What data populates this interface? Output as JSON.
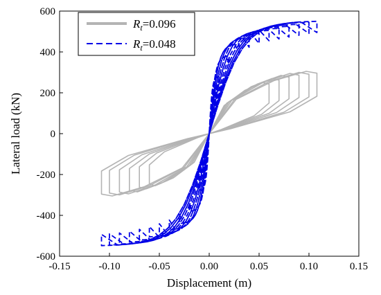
{
  "chart_data": {
    "type": "line",
    "title": "",
    "xlabel": "Displacement (m)",
    "ylabel": "Lateral load (kN)",
    "xlim": [
      -0.15,
      0.15
    ],
    "ylim": [
      -600,
      600
    ],
    "xticks": [
      -0.15,
      -0.1,
      -0.05,
      0.0,
      0.05,
      0.1,
      0.15
    ],
    "xtick_labels": [
      "-0.15",
      "-0.10",
      "-0.05",
      "0.00",
      "0.05",
      "0.10",
      "0.15"
    ],
    "yticks": [
      -600,
      -400,
      -200,
      0,
      200,
      400,
      600
    ],
    "ytick_labels": [
      "-600",
      "-400",
      "-200",
      "0",
      "200",
      "400",
      "600"
    ],
    "grid": false,
    "legend_position": "top-left",
    "series": [
      {
        "name": "Rt=0.096",
        "legend_symbol": "R",
        "legend_subscript": "t",
        "legend_value": "=0.096",
        "color": "#b4b4b4",
        "line_style": "solid",
        "loops": [
          {
            "amp_pos": 0.06,
            "amp_neg": -0.06,
            "peak_pos": 250,
            "peak_neg": -255
          },
          {
            "amp_pos": 0.07,
            "amp_neg": -0.07,
            "peak_pos": 270,
            "peak_neg": -270
          },
          {
            "amp_pos": 0.08,
            "amp_neg": -0.08,
            "peak_pos": 285,
            "peak_neg": -285
          },
          {
            "amp_pos": 0.09,
            "amp_neg": -0.09,
            "peak_pos": 295,
            "peak_neg": -295
          },
          {
            "amp_pos": 0.1,
            "amp_neg": -0.1,
            "peak_pos": 300,
            "peak_neg": -300
          },
          {
            "amp_pos": 0.108,
            "amp_neg": -0.108,
            "peak_pos": 305,
            "peak_neg": -305
          }
        ]
      },
      {
        "name": "Rt=0.048",
        "legend_symbol": "R",
        "legend_subscript": "t",
        "legend_value": "=0.048",
        "color": "#0000e6",
        "line_style": "dashed",
        "loops": [
          {
            "amp_pos": 0.01,
            "amp_neg": -0.01,
            "peak_pos": 280,
            "peak_neg": -280
          },
          {
            "amp_pos": 0.02,
            "amp_neg": -0.02,
            "peak_pos": 380,
            "peak_neg": -380
          },
          {
            "amp_pos": 0.03,
            "amp_neg": -0.03,
            "peak_pos": 440,
            "peak_neg": -440
          },
          {
            "amp_pos": 0.04,
            "amp_neg": -0.04,
            "peak_pos": 470,
            "peak_neg": -470
          },
          {
            "amp_pos": 0.05,
            "amp_neg": -0.05,
            "peak_pos": 490,
            "peak_neg": -490
          },
          {
            "amp_pos": 0.06,
            "amp_neg": -0.06,
            "peak_pos": 505,
            "peak_neg": -505
          },
          {
            "amp_pos": 0.07,
            "amp_neg": -0.07,
            "peak_pos": 515,
            "peak_neg": -520
          },
          {
            "amp_pos": 0.08,
            "amp_neg": -0.08,
            "peak_pos": 525,
            "peak_neg": -530
          },
          {
            "amp_pos": 0.09,
            "amp_neg": -0.09,
            "peak_pos": 535,
            "peak_neg": -540
          },
          {
            "amp_pos": 0.1,
            "amp_neg": -0.1,
            "peak_pos": 545,
            "peak_neg": -545
          },
          {
            "amp_pos": 0.108,
            "amp_neg": -0.108,
            "peak_pos": 550,
            "peak_neg": -548
          }
        ]
      }
    ]
  }
}
